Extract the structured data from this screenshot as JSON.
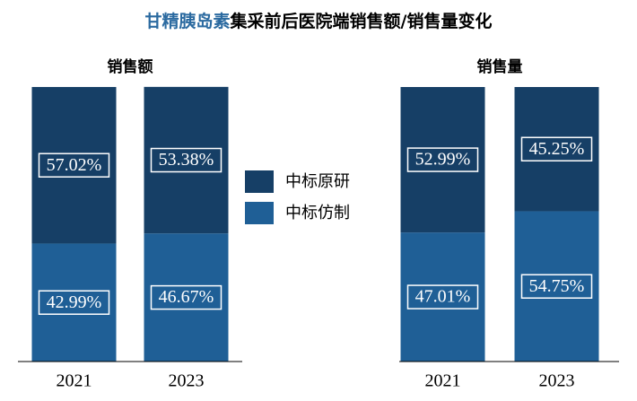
{
  "title": {
    "highlight": "甘精胰岛素",
    "rest": "集采前后医院端销售额/销售量变化"
  },
  "chart_data": [
    {
      "type": "stacked_bar",
      "title": "销售额",
      "categories": [
        "2021",
        "2023"
      ],
      "ylim": [
        0,
        100
      ],
      "series": [
        {
          "name": "中标仿制",
          "color": "#1f5f96",
          "values": [
            42.99,
            46.67
          ],
          "value_labels": [
            "42.99%",
            "46.67%"
          ]
        },
        {
          "name": "中标原研",
          "color": "#163f66",
          "values": [
            57.02,
            53.38
          ],
          "value_labels": [
            "57.02%",
            "53.38%"
          ]
        }
      ]
    },
    {
      "type": "stacked_bar",
      "title": "销售量",
      "categories": [
        "2021",
        "2023"
      ],
      "ylim": [
        0,
        100
      ],
      "series": [
        {
          "color": "#1f5f96",
          "values": [
            47.01,
            54.75
          ],
          "value_labels": [
            "47.01%",
            "54.75%"
          ]
        },
        {
          "color": "#163f66",
          "values": [
            52.99,
            45.25
          ],
          "value_labels": [
            "52.99%",
            "45.25%"
          ]
        }
      ]
    }
  ]
}
